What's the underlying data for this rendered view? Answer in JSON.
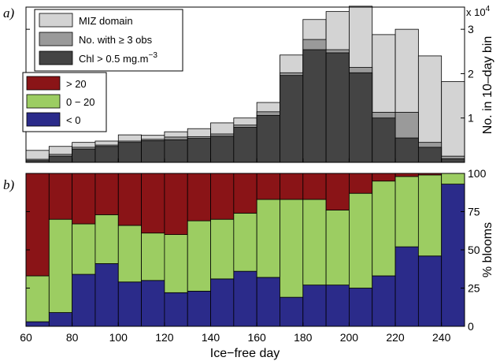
{
  "chart_data": [
    {
      "panel": "a)",
      "type": "bar",
      "ylabel": "No. in 10–day bin",
      "y_multiplier": "x 10",
      "y_multiplier_exp": "4",
      "ylim": [
        0,
        3.5
      ],
      "yticks": [
        1,
        2,
        3
      ],
      "ytick_labels": [
        "1",
        "2",
        "3"
      ],
      "x_bins_start": [
        60,
        70,
        80,
        90,
        100,
        110,
        120,
        130,
        140,
        150,
        160,
        170,
        180,
        190,
        200,
        210,
        220,
        230,
        240
      ],
      "x_bin_width": 10,
      "series": [
        {
          "name": "MIZ domain",
          "color": "#d3d3d3",
          "values": [
            0.27,
            0.36,
            0.45,
            0.48,
            0.62,
            0.61,
            0.69,
            0.76,
            0.89,
            1.0,
            1.35,
            2.42,
            3.22,
            3.4,
            3.52,
            2.88,
            3.0,
            2.4,
            1.82
          ]
        },
        {
          "name": "No. with ≥ 3 obs",
          "color": "#9a9a9a",
          "values": [
            0.07,
            0.18,
            0.34,
            0.39,
            0.48,
            0.52,
            0.57,
            0.58,
            0.64,
            0.84,
            1.14,
            2.02,
            2.77,
            2.54,
            2.14,
            1.13,
            1.13,
            0.45,
            0.14
          ]
        },
        {
          "name": "Chl > 0.5 mg.m",
          "name_sup": "−3",
          "color": "#444444",
          "values": [
            0.04,
            0.14,
            0.3,
            0.36,
            0.45,
            0.49,
            0.51,
            0.54,
            0.59,
            0.79,
            1.06,
            1.96,
            2.54,
            2.47,
            2.02,
            1.0,
            0.55,
            0.34,
            0.08
          ]
        }
      ],
      "legend": "top-left"
    },
    {
      "panel": "b)",
      "type": "bar",
      "stacked": true,
      "xlabel": "Ice−free day",
      "ylabel": "% blooms",
      "ylim": [
        0,
        100
      ],
      "yticks": [
        0,
        25,
        50,
        75,
        100
      ],
      "ytick_labels": [
        "0",
        "25",
        "50",
        "75",
        "100"
      ],
      "xlim": [
        60,
        250
      ],
      "xticks": [
        60,
        80,
        100,
        120,
        140,
        160,
        180,
        200,
        220,
        240
      ],
      "xtick_labels": [
        "60",
        "80",
        "100",
        "120",
        "140",
        "160",
        "180",
        "200",
        "220",
        "240"
      ],
      "x_bins_start": [
        60,
        70,
        80,
        90,
        100,
        110,
        120,
        130,
        140,
        150,
        160,
        170,
        180,
        190,
        200,
        210,
        220,
        230,
        240
      ],
      "x_bin_width": 10,
      "series": [
        {
          "name": "< 0",
          "color": "#2b2b8a",
          "values": [
            3,
            9,
            34,
            41,
            29,
            30,
            22,
            23,
            31,
            36,
            32,
            19,
            27,
            27,
            25,
            33,
            52,
            46,
            93
          ]
        },
        {
          "name": "0 − 20",
          "color": "#9ccd62",
          "values": [
            30,
            61,
            33,
            32,
            37,
            31,
            38,
            46,
            39,
            38,
            51,
            64,
            56,
            49,
            62,
            62,
            46,
            53,
            7
          ]
        },
        {
          "name": "> 20",
          "color": "#8a1417",
          "values": [
            67,
            30,
            33,
            27,
            34,
            39,
            40,
            31,
            30,
            26,
            17,
            17,
            17,
            24,
            13,
            5,
            2,
            1,
            0
          ]
        }
      ],
      "legend": "top-left"
    }
  ],
  "labels": {
    "panel_a": "a)",
    "panel_b": "b)",
    "legend_a": [
      "MIZ domain",
      "No. with ≥ 3 obs",
      "Chl > 0.5 mg.m"
    ],
    "legend_a_sup": "−3",
    "legend_b": [
      "> 20",
      "0 − 20",
      "< 0"
    ]
  }
}
